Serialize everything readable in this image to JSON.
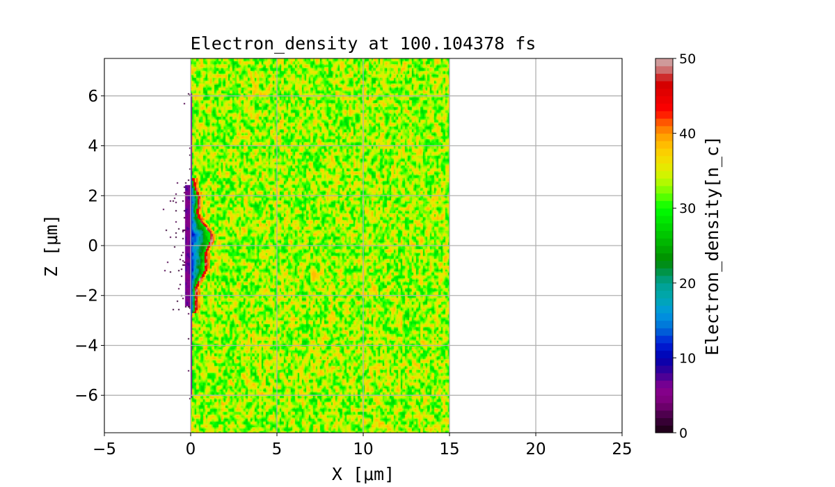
{
  "chart_data": {
    "type": "heatmap",
    "title": "Electron_density at 100.104378 fs",
    "xlabel": "X [μm]",
    "ylabel": "Z [μm]",
    "xlim": [
      -5,
      25
    ],
    "ylim": [
      -7.5,
      7.5
    ],
    "xticks": [
      -5,
      0,
      5,
      10,
      15,
      20,
      25
    ],
    "xtick_labels": [
      "−5",
      "0",
      "5",
      "10",
      "15",
      "20",
      "25"
    ],
    "yticks": [
      -6,
      -4,
      -2,
      0,
      2,
      4,
      6
    ],
    "ytick_labels": [
      "−6",
      "−4",
      "−2",
      "0",
      "2",
      "4",
      "6"
    ],
    "grid": true,
    "colorbar": {
      "label": "Electron_density[n_c]",
      "range": [
        0,
        50
      ],
      "ticks": [
        0,
        10,
        20,
        30,
        40,
        50
      ],
      "tick_labels": [
        "0",
        "10",
        "20",
        "30",
        "40",
        "50"
      ],
      "levels": 50
    },
    "target_region": {
      "x": [
        0,
        15
      ],
      "z": [
        -7.5,
        7.5
      ],
      "typical_density": [
        28,
        38
      ]
    },
    "laser_front": {
      "x_max": 1.1,
      "z_extent": [
        -2.7,
        2.7
      ],
      "peak_density": 50
    },
    "colormap": [
      [
        0,
        "#180010"
      ],
      [
        2,
        "#400040"
      ],
      [
        4,
        "#7a0078"
      ],
      [
        6,
        "#880090"
      ],
      [
        8,
        "#3a0098"
      ],
      [
        10,
        "#0000b0"
      ],
      [
        12,
        "#0020d8"
      ],
      [
        14,
        "#0070d8"
      ],
      [
        16,
        "#0098e0"
      ],
      [
        18,
        "#00a8b0"
      ],
      [
        20,
        "#00a090"
      ],
      [
        22,
        "#009030"
      ],
      [
        23,
        "#008c00"
      ],
      [
        26,
        "#00c000"
      ],
      [
        30,
        "#00ff00"
      ],
      [
        32,
        "#70ff00"
      ],
      [
        34,
        "#c8f800"
      ],
      [
        36,
        "#f0e400"
      ],
      [
        38,
        "#ffc800"
      ],
      [
        40,
        "#ff9800"
      ],
      [
        42,
        "#ff4000"
      ],
      [
        43,
        "#ff0000"
      ],
      [
        47,
        "#d00000"
      ],
      [
        48,
        "#cc5858"
      ],
      [
        50,
        "#d0b0b0"
      ]
    ]
  }
}
